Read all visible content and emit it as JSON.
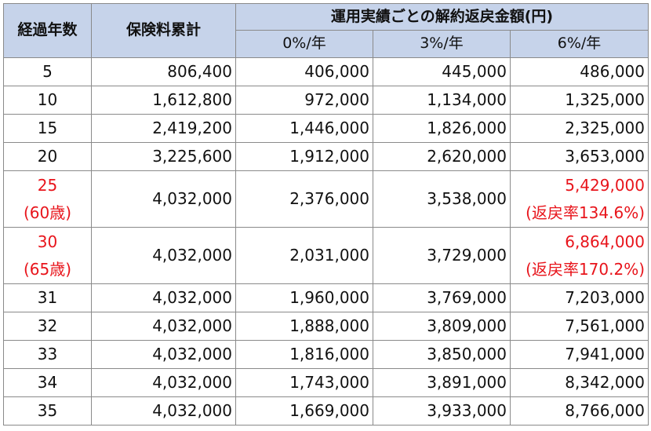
{
  "table": {
    "headers": {
      "years": "経過年数",
      "premium_total": "保険料累計",
      "refund_group": "運用実績ごとの解約返戻金額(円)",
      "rate_0": "0%/年",
      "rate_3": "3%/年",
      "rate_6": "6%/年"
    },
    "rows": [
      {
        "year": "5",
        "premium": "806,400",
        "r0": "406,000",
        "r3": "445,000",
        "r6": "486,000"
      },
      {
        "year": "10",
        "premium": "1,612,800",
        "r0": "972,000",
        "r3": "1,134,000",
        "r6": "1,325,000"
      },
      {
        "year": "15",
        "premium": "2,419,200",
        "r0": "1,446,000",
        "r3": "1,826,000",
        "r6": "2,325,000"
      },
      {
        "year": "20",
        "premium": "3,225,600",
        "r0": "1,912,000",
        "r3": "2,620,000",
        "r6": "3,653,000"
      },
      {
        "year": "25",
        "age": "(60歳)",
        "premium": "4,032,000",
        "r0": "2,376,000",
        "r3": "3,538,000",
        "r6": "5,429,000",
        "r6_note": "(返戻率134.6%)"
      },
      {
        "year": "30",
        "age": "(65歳)",
        "premium": "4,032,000",
        "r0": "2,031,000",
        "r3": "3,729,000",
        "r6": "6,864,000",
        "r6_note": "(返戻率170.2%)"
      },
      {
        "year": "31",
        "premium": "4,032,000",
        "r0": "1,960,000",
        "r3": "3,769,000",
        "r6": "7,203,000"
      },
      {
        "year": "32",
        "premium": "4,032,000",
        "r0": "1,888,000",
        "r3": "3,809,000",
        "r6": "7,561,000"
      },
      {
        "year": "33",
        "premium": "4,032,000",
        "r0": "1,816,000",
        "r3": "3,850,000",
        "r6": "7,941,000"
      },
      {
        "year": "34",
        "premium": "4,032,000",
        "r0": "1,743,000",
        "r3": "3,891,000",
        "r6": "8,342,000"
      },
      {
        "year": "35",
        "premium": "4,032,000",
        "r0": "1,669,000",
        "r3": "3,933,000",
        "r6": "8,766,000"
      }
    ]
  },
  "colors": {
    "header_bg": "#c6d3ea",
    "highlight_text": "#e8141b",
    "border": "#8a8a8a"
  }
}
